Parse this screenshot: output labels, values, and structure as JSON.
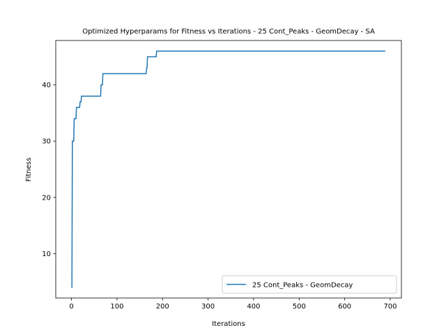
{
  "chart_data": {
    "type": "line",
    "title": "Optimized Hyperparams for Fitness vs Iterations - 25 Cont_Peaks - GeomDecay - SA",
    "xlabel": "Iterations",
    "ylabel": "Fitness",
    "xlim": [
      -34.5,
      724.5
    ],
    "ylim": [
      2.1,
      47.9
    ],
    "xticks": [
      0,
      100,
      200,
      300,
      400,
      500,
      600,
      700
    ],
    "yticks": [
      10,
      20,
      30,
      40
    ],
    "grid": false,
    "legend_position": "lower right",
    "series": [
      {
        "name": "25 Cont_Peaks - GeomDecay",
        "color": "#1f77b4",
        "points": [
          [
            0,
            4
          ],
          [
            1,
            4
          ],
          [
            2,
            30
          ],
          [
            5,
            30
          ],
          [
            6,
            34
          ],
          [
            10,
            34
          ],
          [
            11,
            36
          ],
          [
            18,
            36
          ],
          [
            19,
            37
          ],
          [
            21,
            37
          ],
          [
            22,
            38
          ],
          [
            64,
            38
          ],
          [
            65,
            40
          ],
          [
            68,
            40
          ],
          [
            69,
            42
          ],
          [
            164,
            42
          ],
          [
            165,
            43
          ],
          [
            166,
            43
          ],
          [
            167,
            45
          ],
          [
            186,
            45
          ],
          [
            187,
            46
          ],
          [
            689,
            46
          ]
        ]
      }
    ]
  }
}
